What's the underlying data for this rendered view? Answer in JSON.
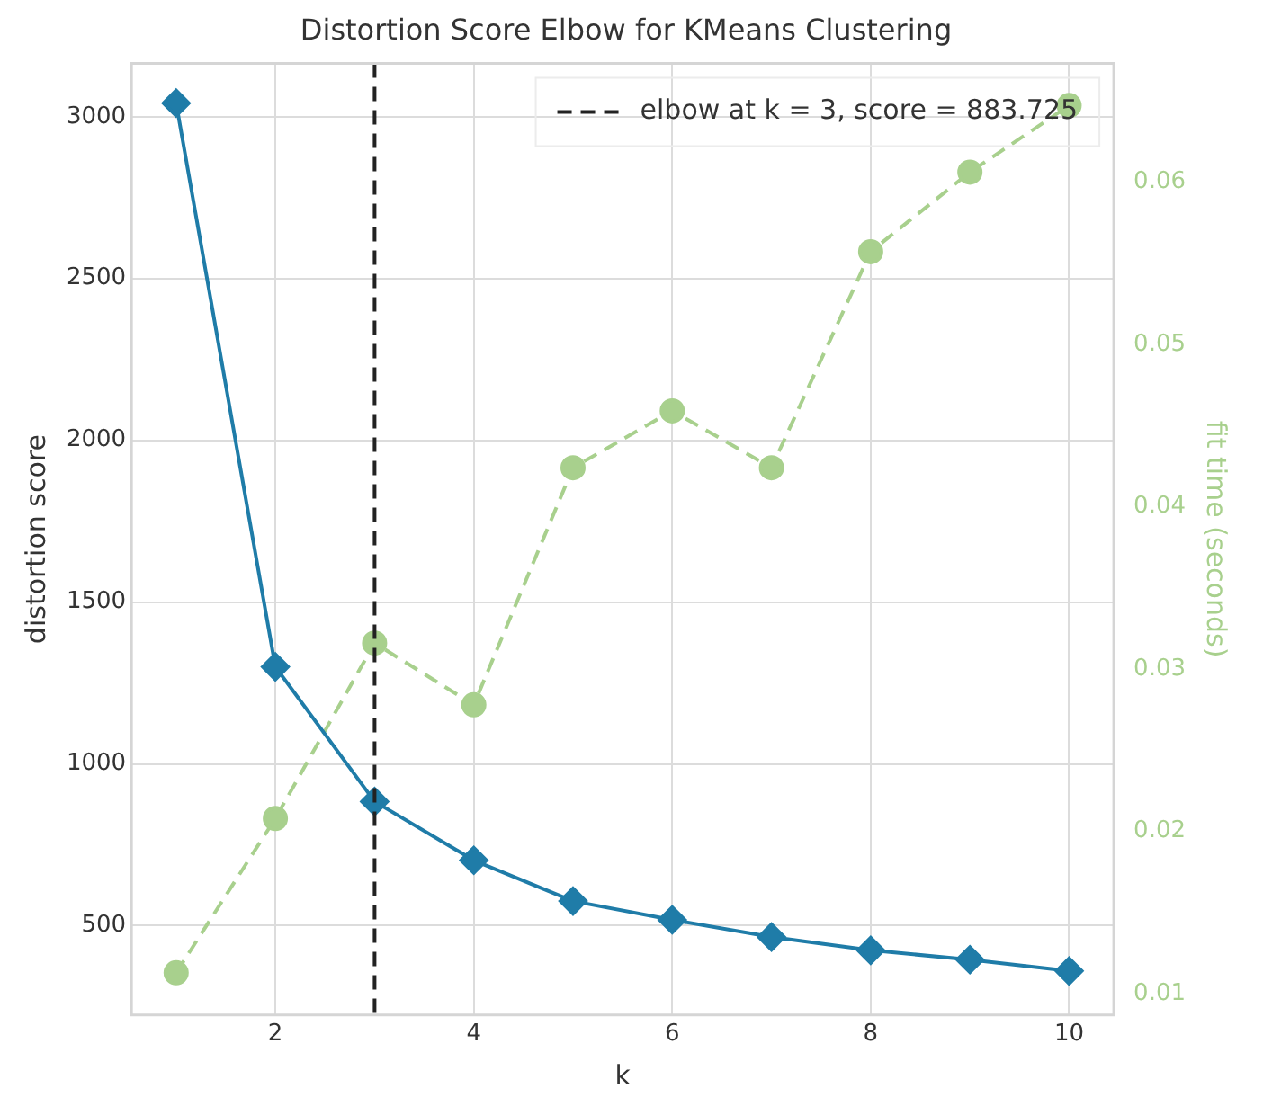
{
  "chart_data": {
    "type": "line",
    "title": "Distortion Score Elbow for KMeans Clustering",
    "xlabel": "k",
    "ylabel": "distortion score",
    "y2label": "fit time (seconds)",
    "x": [
      1,
      2,
      3,
      4,
      5,
      6,
      7,
      8,
      9,
      10
    ],
    "series": [
      {
        "color": "#1f7ca8",
        "values": [
          3042,
          1300,
          883.725,
          702,
          576,
          518,
          465,
          424,
          395,
          360
        ],
        "marker": "diamond",
        "line_style": "solid"
      },
      {
        "color": "#a8d08d",
        "values": [
          0.0113,
          0.0208,
          0.0316,
          0.0278,
          0.0424,
          0.0459,
          0.0424,
          0.0557,
          0.0606,
          0.0647
        ],
        "axis": "y2",
        "marker": "circle",
        "line_style": "dashed"
      }
    ],
    "xlim": [
      0.55,
      10.45
    ],
    "xticks": [
      2,
      4,
      6,
      8,
      10
    ],
    "ylim": [
      224,
      3165
    ],
    "yticks": [
      500,
      1000,
      1500,
      2000,
      2500,
      3000
    ],
    "y2lim": [
      0.0087,
      0.0673
    ],
    "y2ticks": [
      0.01,
      0.02,
      0.03,
      0.04,
      0.05,
      0.06
    ],
    "ref_lines": [
      {
        "axis": "x",
        "value": 3,
        "label": "elbow at k = 3, score = 883.725",
        "color": "#222222",
        "line_style": "dashed"
      }
    ],
    "grid": true,
    "legend": "top right"
  }
}
